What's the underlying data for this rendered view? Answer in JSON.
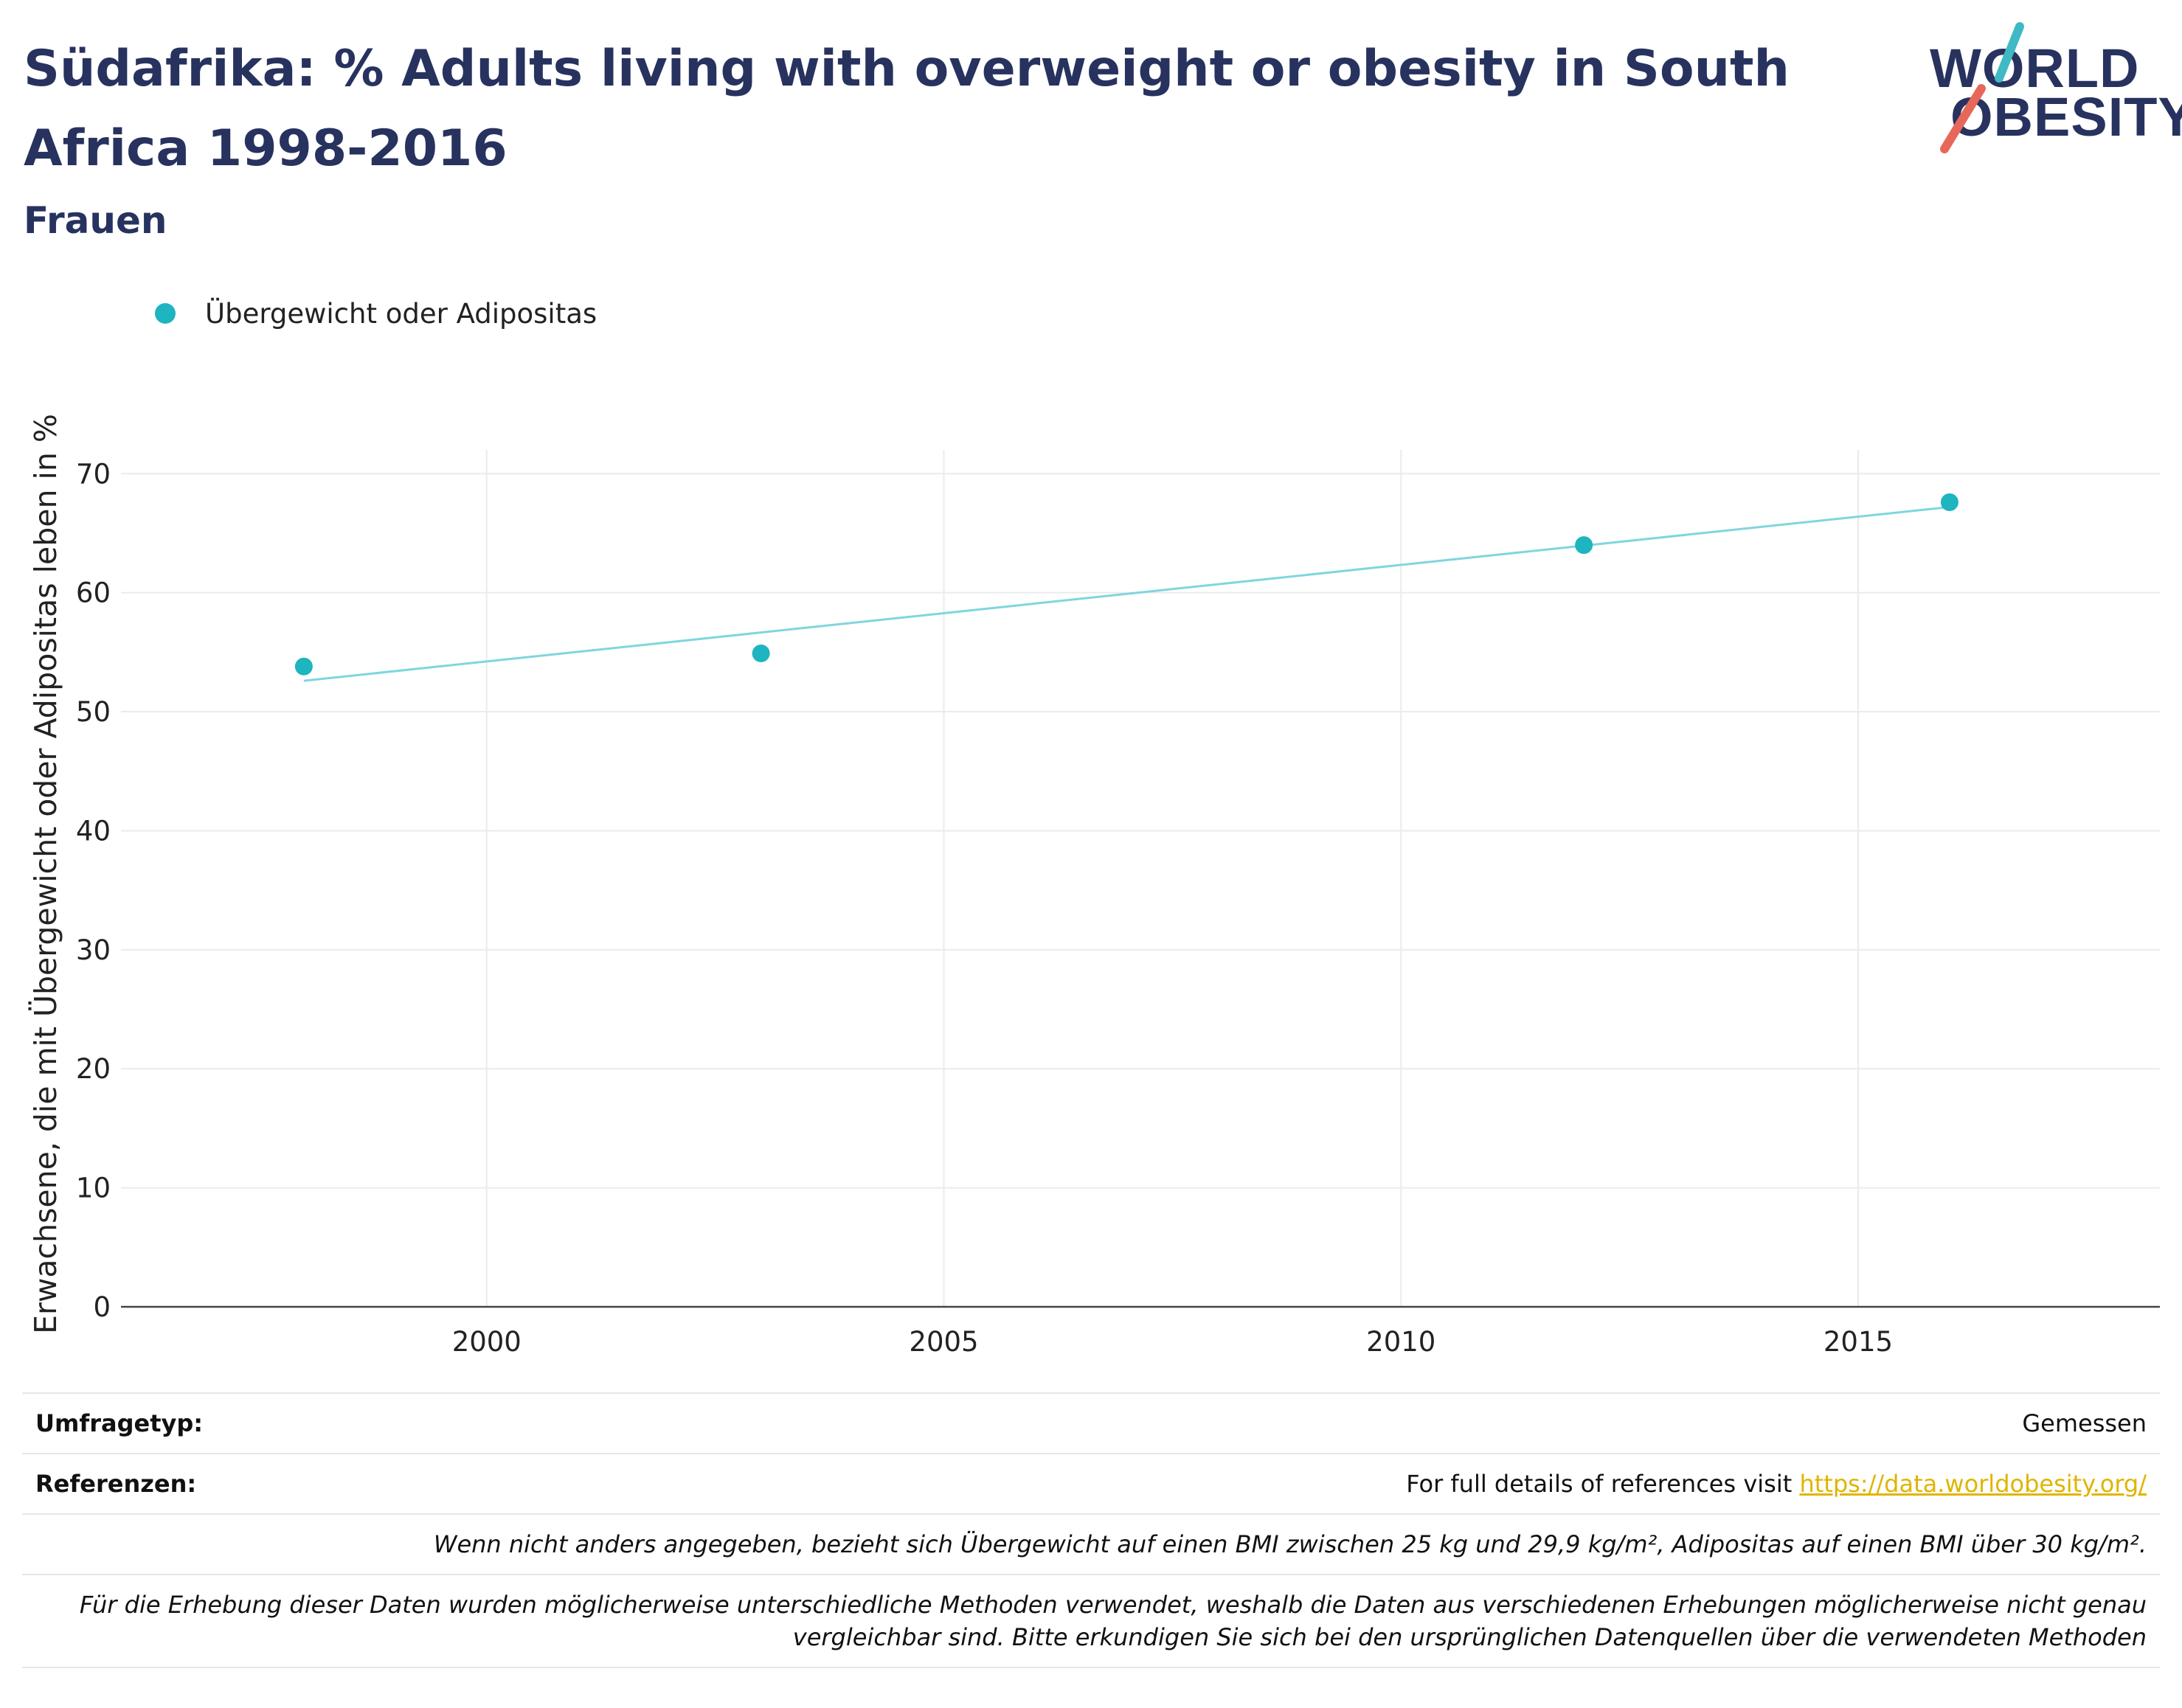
{
  "header": {
    "title": "Südafrika: % Adults living with overweight or obesity in South Africa 1998-2016",
    "subtitle": "Frauen"
  },
  "logo": {
    "line1": "WORLD",
    "line2": "OBESITY",
    "accent_colors": [
      "#3fb9c4",
      "#e7685a"
    ]
  },
  "legend": {
    "label": "Übergewicht oder Adipositas"
  },
  "colors": {
    "series": "#1eb4c0",
    "trend": "#7fd6dd",
    "title": "#27325f",
    "grid": "#ebebeb",
    "link": "#e0b400"
  },
  "chart_data": {
    "type": "scatter",
    "title": "Südafrika: % Adults living with overweight or obesity in South Africa 1998-2016",
    "subtitle": "Frauen",
    "xlabel": "",
    "ylabel": "Erwachsene, die mit Übergewicht oder Adipositas leben in %",
    "xlim": [
      1996,
      2018.3
    ],
    "ylim": [
      0,
      72
    ],
    "x_ticks": [
      2000,
      2005,
      2010,
      2015
    ],
    "y_ticks": [
      0,
      10,
      20,
      30,
      40,
      50,
      60,
      70
    ],
    "grid": true,
    "legend_position": "top-left",
    "series": [
      {
        "name": "Übergewicht oder Adipositas",
        "x": [
          1998,
          2003,
          2012,
          2016
        ],
        "y": [
          53.8,
          54.9,
          64.0,
          67.6
        ]
      }
    ],
    "trendline": {
      "x": [
        1998,
        2016
      ],
      "y": [
        52.6,
        67.2
      ]
    }
  },
  "metadata": {
    "survey_type_label": "Umfragetyp:",
    "survey_type_value": "Gemessen",
    "references_label": "Referenzen:",
    "references_text": "For full details of references visit ",
    "references_link": "https://data.worldobesity.org/",
    "note_definition": "Wenn nicht anders angegeben, bezieht sich Übergewicht auf einen BMI zwischen 25 kg und 29,9 kg/m², Adipositas auf einen BMI über 30 kg/m².",
    "note_methods_line1": "Für die Erhebung dieser Daten wurden möglicherweise unterschiedliche Methoden verwendet, weshalb die Daten aus verschiedenen Erhebungen möglicherweise nicht genau",
    "note_methods_line2": "vergleichbar sind. Bitte erkundigen Sie sich bei den ursprünglichen Datenquellen über die verwendeten Methoden"
  }
}
